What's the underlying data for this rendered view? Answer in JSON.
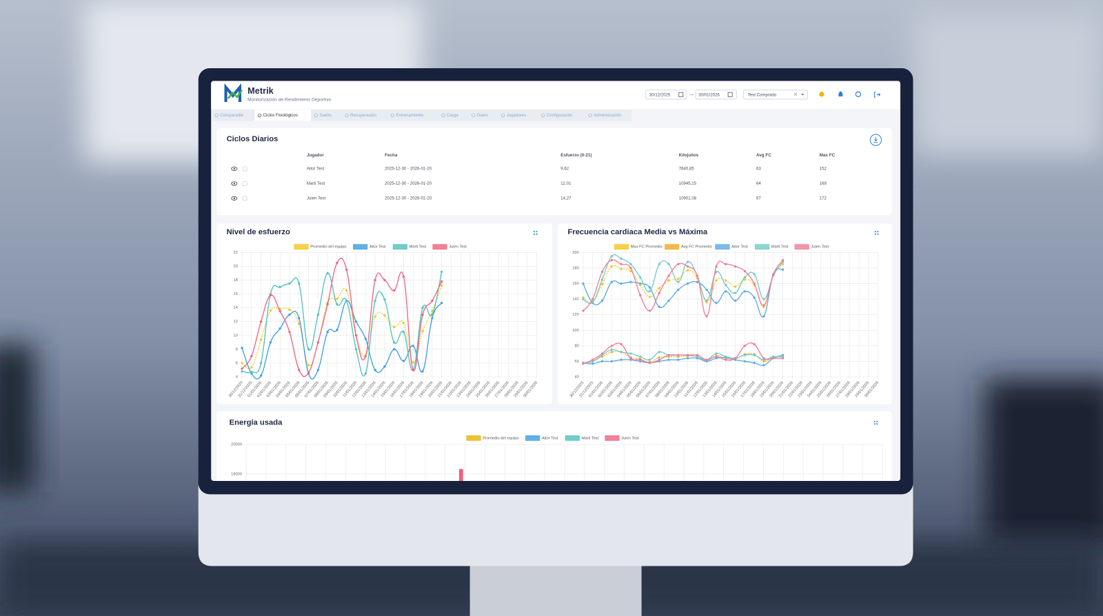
{
  "header": {
    "brand": "Metrik",
    "subtitle": "Monitorización de Rendimiento Deportivo",
    "date_from": "30/12/2025",
    "date_separator": "—",
    "date_to": "30/01/2026",
    "team_select": "Test Comprado"
  },
  "tabs": [
    "Comparador",
    "Ciclos Fisiológicos",
    "Sueño",
    "Recuperación",
    "Entrenamiento",
    "Carga",
    "Diario",
    "Jugadores",
    "Configuración",
    "Administración"
  ],
  "table": {
    "title": "Ciclos Diarios",
    "columns": [
      "Jugador",
      "Fecha",
      "Esfuerzo (0-21)",
      "Kilojulios",
      "Avg FC",
      "Max FC"
    ],
    "rows": [
      [
        "Aitor Test",
        "2025-12-30 - 2026-01-20",
        "9,62",
        "7640,85",
        "63",
        "152"
      ],
      [
        "Marti Test",
        "2025-12-30 - 2026-01-20",
        "12,01",
        "10945,15",
        "64",
        "169"
      ],
      [
        "Julen Test",
        "2025-12-30 - 2026-01-20",
        "14,27",
        "10901,08",
        "67",
        "172"
      ]
    ]
  },
  "chart_data": [
    {
      "type": "line",
      "title": "Nivel de esfuerzo",
      "categories": [
        "30/12/2025",
        "31/12/2025",
        "01/01/2026",
        "02/01/2026",
        "03/01/2026",
        "04/01/2026",
        "05/01/2026",
        "06/01/2026",
        "07/01/2026",
        "08/01/2026",
        "09/01/2026",
        "10/01/2026",
        "11/01/2026",
        "12/01/2026",
        "13/01/2026",
        "14/01/2026",
        "15/01/2026",
        "16/01/2026",
        "17/01/2026",
        "18/01/2026",
        "19/01/2026",
        "20/01/2026",
        "21/01/2026",
        "22/01/2026",
        "23/01/2026",
        "24/01/2026",
        "25/01/2026",
        "26/01/2026",
        "27/01/2026",
        "28/01/2026",
        "29/01/2026",
        "30/01/2026"
      ],
      "ylim": [
        4,
        22
      ],
      "yticks": [
        4,
        6,
        8,
        10,
        12,
        14,
        16,
        18,
        20,
        22
      ],
      "grid": true,
      "series": [
        {
          "name": "Promedio del equipo",
          "color": "#f5c518",
          "dashed": true,
          "values": [
            6,
            5.4,
            9.4,
            13.6,
            13.8,
            13.7,
            11.7,
            5.7,
            9,
            14.7,
            15.3,
            16.5,
            10,
            7,
            12.7,
            12.9,
            11.2,
            11.8,
            6.1,
            10.6,
            13.5,
            17.2,
            null,
            null,
            null,
            null,
            null,
            null,
            null,
            null,
            null,
            null
          ]
        },
        {
          "name": "Aitor Test",
          "color": "#3b9de0",
          "values": [
            8.2,
            4.5,
            4.2,
            9,
            11,
            13,
            12.5,
            4.5,
            5,
            10.5,
            10.8,
            15,
            12,
            9.5,
            5,
            5.5,
            8,
            6.3,
            8.5,
            4.8,
            12.5,
            14.7,
            null,
            null,
            null,
            null,
            null,
            null,
            null,
            null,
            null,
            null
          ]
        },
        {
          "name": "Marti Test",
          "color": "#4cc1bd",
          "values": [
            4.8,
            4.7,
            6,
            16,
            17,
            17.5,
            17.5,
            8,
            13,
            19,
            14.5,
            15,
            8,
            4.5,
            15,
            15.2,
            9,
            10.5,
            5,
            14,
            13,
            19.2,
            null,
            null,
            null,
            null,
            null,
            null,
            null,
            null,
            null,
            null
          ]
        },
        {
          "name": "Julen Test",
          "color": "#f0607e",
          "values": [
            5.2,
            7,
            12,
            15.8,
            13.5,
            10.5,
            5,
            4.6,
            9,
            14.5,
            20.5,
            19.5,
            10,
            7,
            18,
            18,
            16.5,
            18.5,
            5,
            13,
            15,
            17.8,
            null,
            null,
            null,
            null,
            null,
            null,
            null,
            null,
            null,
            null
          ]
        }
      ]
    },
    {
      "type": "line",
      "title": "Frecuencia cardiaca Media vs Máxima",
      "categories": [
        "30/12/2025",
        "31/12/2025",
        "01/01/2026",
        "02/01/2026",
        "03/01/2026",
        "04/01/2026",
        "05/01/2026",
        "06/01/2026",
        "07/01/2026",
        "08/01/2026",
        "09/01/2026",
        "10/01/2026",
        "11/01/2026",
        "12/01/2026",
        "13/01/2026",
        "14/01/2026",
        "15/01/2026",
        "16/01/2026",
        "17/01/2026",
        "18/01/2026",
        "19/01/2026",
        "20/01/2026",
        "21/01/2026",
        "22/01/2026",
        "23/01/2026",
        "24/01/2026",
        "25/01/2026",
        "26/01/2026",
        "27/01/2026",
        "28/01/2026",
        "29/01/2026",
        "30/01/2026"
      ],
      "ylim": [
        40,
        200
      ],
      "yticks": [
        40,
        60,
        80,
        100,
        120,
        140,
        160,
        180,
        200
      ],
      "grid": true,
      "series": [
        {
          "name": "Max FC Promedio",
          "color": "#f5c518",
          "dashed": true,
          "values": [
            142,
            137,
            159,
            182,
            179,
            176,
            158,
            143,
            154,
            164,
            166,
            177,
            167,
            136,
            164,
            164,
            156,
            165,
            158,
            130,
            171,
            185,
            null,
            null,
            null,
            null,
            null,
            null,
            null,
            null,
            null,
            null
          ]
        },
        {
          "name": "Avg FC Promedio",
          "color": "#f2a81e",
          "dashed": true,
          "values": [
            58,
            60,
            66,
            72,
            72,
            65,
            63,
            59,
            65,
            66,
            66,
            67,
            66,
            61,
            67,
            64,
            63,
            69,
            69,
            60,
            65,
            66,
            null,
            null,
            null,
            null,
            null,
            null,
            null,
            null,
            null,
            null
          ]
        },
        {
          "name": "Aitor Test",
          "color": "#5aa9e6",
          "max": [
            160,
            135,
            138,
            162,
            160,
            162,
            160,
            155,
            130,
            138,
            152,
            160,
            162,
            152,
            135,
            150,
            138,
            150,
            142,
            118,
            172,
            178,
            null,
            null,
            null,
            null,
            null,
            null,
            null,
            null,
            null,
            null
          ],
          "avg": [
            58,
            57,
            60,
            60,
            62,
            62,
            60,
            58,
            60,
            62,
            62,
            64,
            64,
            60,
            64,
            65,
            62,
            60,
            58,
            55,
            64,
            68,
            null,
            null,
            null,
            null,
            null,
            null,
            null,
            null,
            null,
            null
          ]
        },
        {
          "name": "Marti Test",
          "color": "#6fcac6",
          "max": [
            140,
            136,
            165,
            195,
            192,
            185,
            168,
            150,
            185,
            185,
            162,
            188,
            170,
            138,
            175,
            158,
            148,
            168,
            172,
            140,
            170,
            188,
            null,
            null,
            null,
            null,
            null,
            null,
            null,
            null,
            null,
            null
          ],
          "avg": [
            58,
            60,
            68,
            75,
            72,
            70,
            66,
            62,
            72,
            68,
            68,
            68,
            66,
            62,
            70,
            66,
            64,
            68,
            68,
            62,
            66,
            66,
            null,
            null,
            null,
            null,
            null,
            null,
            null,
            null,
            null,
            null
          ]
        },
        {
          "name": "Julen Test",
          "color": "#f27a95",
          "max": [
            125,
            140,
            175,
            190,
            185,
            180,
            145,
            125,
            148,
            170,
            185,
            182,
            170,
            118,
            182,
            185,
            182,
            176,
            160,
            132,
            172,
            190,
            null,
            null,
            null,
            null,
            null,
            null,
            null,
            null,
            null,
            null
          ],
          "avg": [
            57,
            62,
            70,
            80,
            82,
            64,
            62,
            58,
            62,
            68,
            68,
            68,
            68,
            62,
            66,
            62,
            64,
            80,
            82,
            64,
            64,
            64,
            null,
            null,
            null,
            null,
            null,
            null,
            null,
            null,
            null,
            null
          ]
        }
      ]
    },
    {
      "type": "bar",
      "title": "Energía usada",
      "ylim": [
        17500,
        20000
      ],
      "yticks": [
        18000,
        20000
      ],
      "grid": true,
      "series": [
        {
          "name": "Promedio del equipo",
          "color": "#e8b400",
          "values": [
            null,
            null,
            null,
            null,
            null,
            null,
            null,
            null,
            null,
            null,
            null,
            null,
            null,
            null,
            null,
            null,
            null,
            null,
            null,
            null,
            null,
            null,
            null,
            null,
            null,
            null,
            null,
            null,
            null,
            null,
            null,
            null
          ]
        },
        {
          "name": "Aitor Test",
          "color": "#3b9de0",
          "values": [
            null,
            null,
            null,
            null,
            null,
            null,
            null,
            null,
            null,
            null,
            null,
            null,
            null,
            null,
            null,
            null,
            null,
            null,
            null,
            null,
            null,
            null,
            null,
            null,
            null,
            null,
            null,
            null,
            null,
            null,
            null,
            null
          ]
        },
        {
          "name": "Marti Test",
          "color": "#4cc1bd",
          "values": [
            null,
            null,
            null,
            null,
            null,
            null,
            null,
            null,
            null,
            null,
            null,
            null,
            null,
            null,
            null,
            null,
            null,
            null,
            null,
            null,
            null,
            null,
            null,
            null,
            null,
            null,
            null,
            null,
            null,
            null,
            null,
            null
          ]
        },
        {
          "name": "Julen Test",
          "color": "#f0607e",
          "values": [
            null,
            null,
            null,
            null,
            null,
            null,
            null,
            null,
            null,
            null,
            18330,
            null,
            null,
            null,
            null,
            null,
            null,
            null,
            null,
            null,
            null,
            null,
            null,
            null,
            null,
            null,
            null,
            null,
            null,
            null,
            null,
            null
          ]
        }
      ]
    }
  ]
}
